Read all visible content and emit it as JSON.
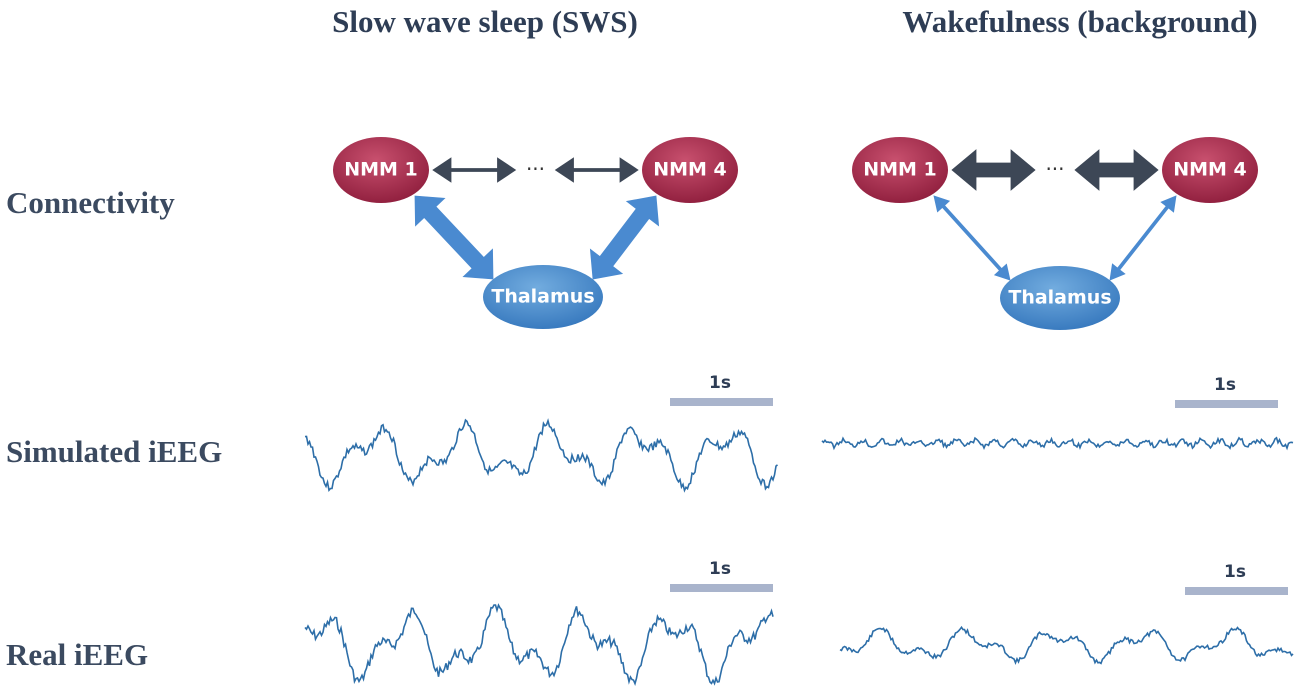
{
  "columns": [
    "Slow wave sleep (SWS)",
    "Wakefulness (background)"
  ],
  "rows": [
    "Connectivity",
    "Simulated iEEG",
    "Real iEEG"
  ],
  "panels": [
    {
      "nodes": [
        "NMM 1",
        "NMM 4",
        "Thalamus"
      ],
      "ellipsis": "···",
      "scale_bars": [
        "1s",
        "1s"
      ]
    },
    {
      "nodes": [
        "NMM 1",
        "NMM 4",
        "Thalamus"
      ],
      "ellipsis": "···",
      "scale_bars": [
        "1s",
        "1s"
      ]
    }
  ]
}
